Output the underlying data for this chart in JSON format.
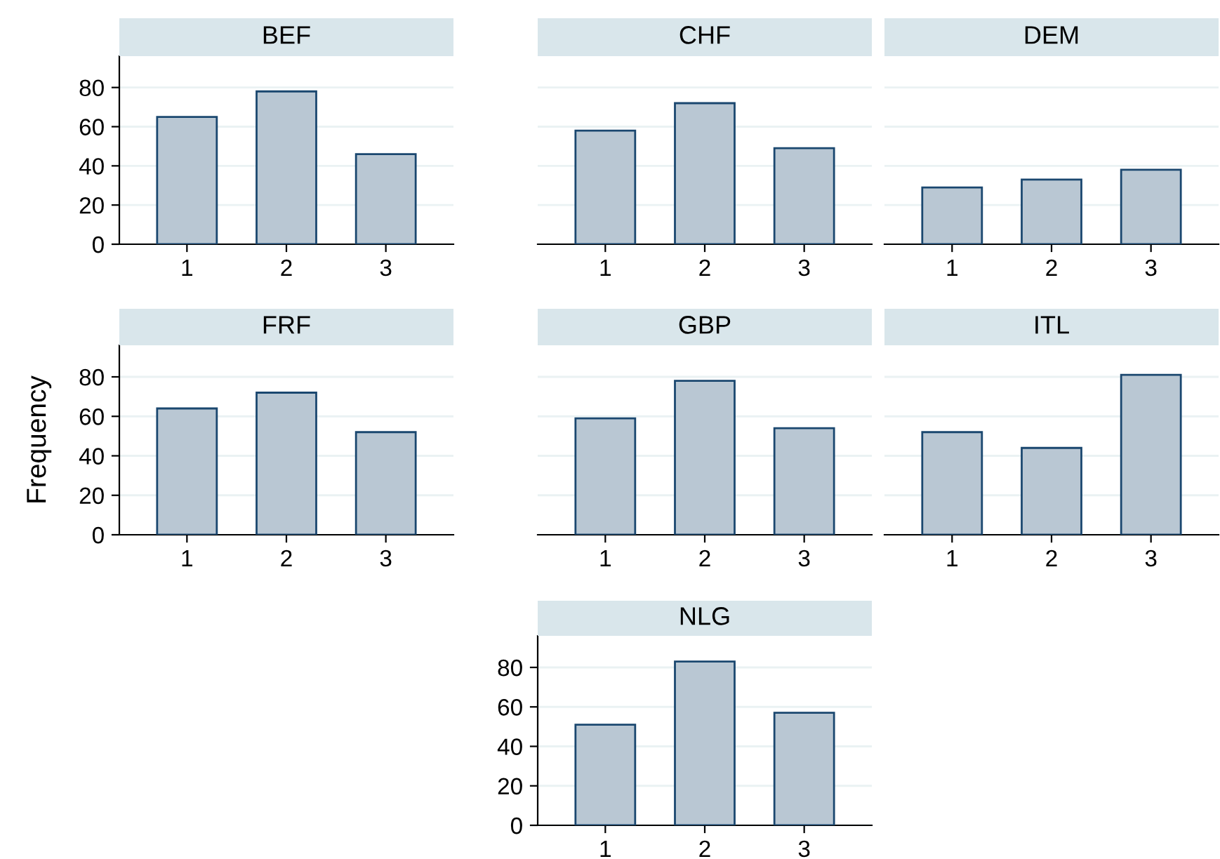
{
  "chart_data": [
    {
      "type": "bar",
      "title": "BEF",
      "categories": [
        "1",
        "2",
        "3"
      ],
      "values": [
        65,
        78,
        46
      ],
      "color": "#b9c7d3",
      "ylim": [
        0,
        96
      ],
      "yticks": [
        0,
        20,
        40,
        60,
        80
      ],
      "grid": "y"
    },
    {
      "type": "bar",
      "title": "CHF",
      "categories": [
        "1",
        "2",
        "3"
      ],
      "values": [
        58,
        72,
        49
      ],
      "color": "#b9c7d3",
      "yticks": [
        0,
        20,
        40,
        60,
        80
      ],
      "grid": "y",
      "tick_labels": "x"
    },
    {
      "type": "bar",
      "title": "DEM",
      "categories": [
        "1",
        "2",
        "3"
      ],
      "values": [
        29,
        33,
        38
      ],
      "color": "#b9c7d3",
      "yticks": [
        0,
        20,
        40,
        60,
        80
      ],
      "grid": "y",
      "tick_labels": "x"
    },
    {
      "type": "bar",
      "title": "FRF",
      "ylabel": "Frequency",
      "categories": [
        "1",
        "2",
        "3"
      ],
      "values": [
        64,
        72,
        52
      ],
      "color": "#b9c7d3",
      "ylim": [
        0,
        96
      ],
      "yticks": [
        0,
        20,
        40,
        60,
        80
      ],
      "grid": "y"
    },
    {
      "type": "bar",
      "title": "GBP",
      "categories": [
        "1",
        "2",
        "3"
      ],
      "values": [
        59,
        78,
        54
      ],
      "color": "#b9c7d3",
      "yticks": [
        0,
        20,
        40,
        60,
        80
      ],
      "grid": "y",
      "tick_labels": "x"
    },
    {
      "type": "bar",
      "title": "ITL",
      "categories": [
        "1",
        "2",
        "3"
      ],
      "values": [
        52,
        44,
        81
      ],
      "color": "#b9c7d3",
      "yticks": [
        0,
        20,
        40,
        60,
        80
      ],
      "grid": "y",
      "tick_labels": "x"
    },
    {
      "type": "bar",
      "title": "NLG",
      "categories": [
        "1",
        "2",
        "3"
      ],
      "values": [
        51,
        83,
        57
      ],
      "color": "#b9c7d3",
      "ylim": [
        0,
        96
      ],
      "yticks": [
        0,
        20,
        40,
        60,
        80
      ],
      "grid": "y"
    }
  ]
}
